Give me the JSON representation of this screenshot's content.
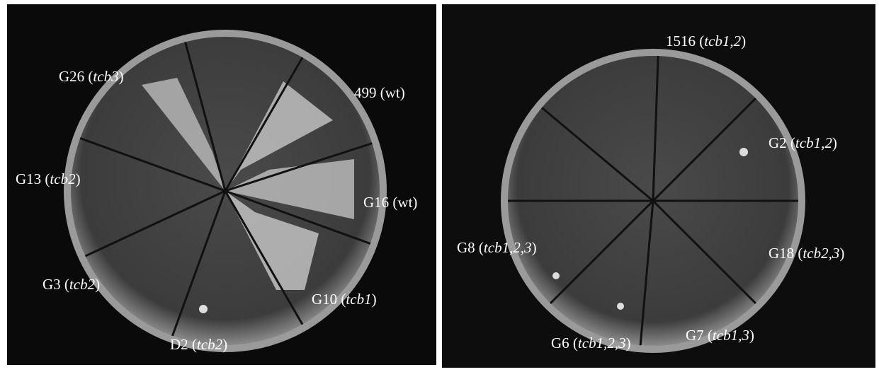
{
  "plates": [
    {
      "labels": [
        {
          "parts": [
            "G26 (",
            "tcb3",
            ")"
          ]
        },
        {
          "parts": [
            "499 (wt)"
          ]
        },
        {
          "parts": [
            "G13 (",
            "tcb2",
            ")"
          ]
        },
        {
          "parts": [
            "G16 (wt)"
          ]
        },
        {
          "parts": [
            "G3 (",
            "tcb2",
            ")"
          ]
        },
        {
          "parts": [
            "G10 (",
            "tcb1",
            ")"
          ]
        },
        {
          "parts": [
            "D2 (",
            "tcb2",
            ")"
          ]
        }
      ]
    },
    {
      "labels": [
        {
          "parts": [
            "1516 (",
            "tcb1,2",
            ")"
          ]
        },
        {
          "parts": [
            "G2 (",
            "tcb1,2",
            ")"
          ]
        },
        {
          "parts": [
            "G8 (",
            "tcb1,2,3",
            ")"
          ]
        },
        {
          "parts": [
            "G18 (",
            "tcb2,3",
            ")"
          ]
        },
        {
          "parts": [
            "G6 (",
            "tcb1,2,3",
            ")"
          ]
        },
        {
          "parts": [
            "G7 (",
            "tcb1,3",
            ")"
          ]
        }
      ]
    }
  ]
}
